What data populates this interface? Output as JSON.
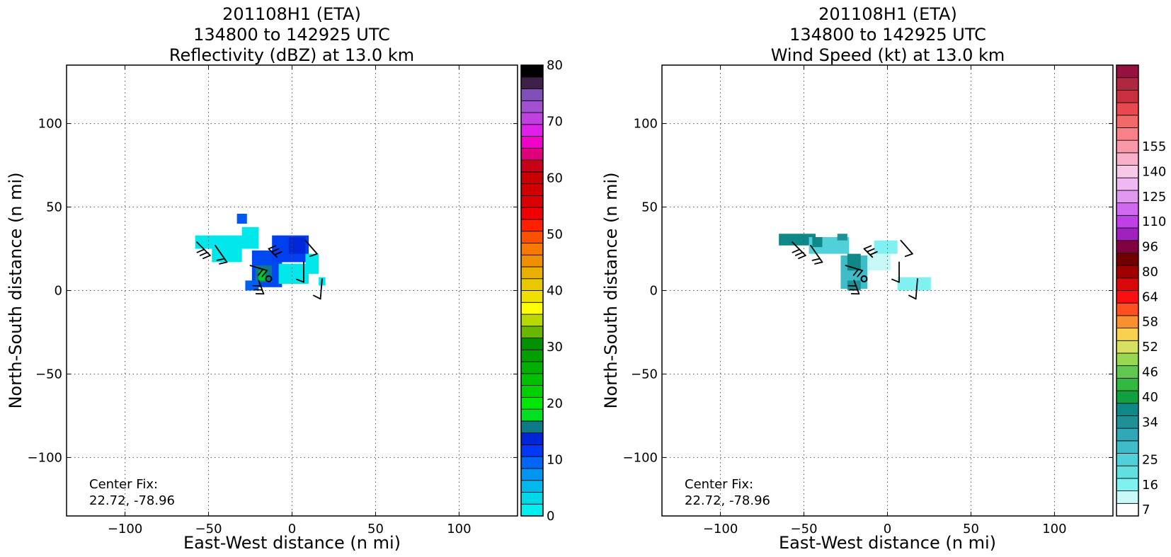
{
  "chart_data": [
    {
      "type": "heatmap",
      "title_lines": [
        "201108H1 (ETA)",
        "134800 to 142925 UTC",
        "Reflectivity (dBZ) at 13.0 km"
      ],
      "xlabel": "East-West distance (n mi)",
      "ylabel": "North-South distance (n mi)",
      "xlim": [
        -135,
        135
      ],
      "ylim": [
        -135,
        135
      ],
      "xticks": [
        -100,
        -50,
        0,
        50,
        100
      ],
      "yticks": [
        -100,
        -50,
        0,
        50,
        100
      ],
      "xtick_labels": [
        "−100",
        "−50",
        "0",
        "50",
        "100"
      ],
      "ytick_labels": [
        "−100",
        "−50",
        "0",
        "50",
        "100"
      ],
      "grid": true,
      "annotation_lines": [
        "Center Fix:",
        "22.72, -78.96"
      ],
      "center_marker": [
        -14,
        7
      ],
      "colorbar": {
        "min": 0,
        "max": 80,
        "tick_values": [
          0,
          10,
          20,
          30,
          40,
          50,
          60,
          70,
          80
        ],
        "tick_labels": [
          "0",
          "10",
          "20",
          "30",
          "40",
          "50",
          "60",
          "70",
          "80"
        ],
        "colors": [
          "#00f0f0",
          "#00d8e8",
          "#00b8ee",
          "#0095f0",
          "#0066f6",
          "#0038f6",
          "#0024d8",
          "#0d7a8a",
          "#00e020",
          "#00e600",
          "#00d000",
          "#00c000",
          "#00b000",
          "#00a000",
          "#009000",
          "#68b800",
          "#b8d800",
          "#ffff00",
          "#f0e000",
          "#e8c800",
          "#eab000",
          "#f09000",
          "#f87800",
          "#ff5000",
          "#ff2000",
          "#f00000",
          "#d80000",
          "#d00000",
          "#c80000",
          "#c80018",
          "#e0007a",
          "#f000c8",
          "#e020e8",
          "#c040e0",
          "#a050d0",
          "#8050b8",
          "#40204a",
          "#000000"
        ]
      },
      "radar_patches": [
        {
          "x": -58,
          "y": 25,
          "w": 38,
          "h": 8,
          "color": "#00e8ec"
        },
        {
          "x": -48,
          "y": 17,
          "w": 18,
          "h": 8,
          "color": "#00e8ec"
        },
        {
          "x": -33,
          "y": 40,
          "w": 6,
          "h": 6,
          "color": "#0058f0"
        },
        {
          "x": -30,
          "y": 30,
          "w": 10,
          "h": 8,
          "color": "#00e8ec"
        },
        {
          "x": -24,
          "y": 2,
          "w": 18,
          "h": 22,
          "color": "#0048f0"
        },
        {
          "x": -22,
          "y": 5,
          "w": 10,
          "h": 10,
          "color": "#0d7a8a"
        },
        {
          "x": -20,
          "y": 6,
          "w": 4,
          "h": 6,
          "color": "#00c828"
        },
        {
          "x": -12,
          "y": 17,
          "w": 22,
          "h": 16,
          "color": "#0040f0"
        },
        {
          "x": -8,
          "y": 4,
          "w": 18,
          "h": 12,
          "color": "#00e8ec"
        },
        {
          "x": 8,
          "y": 10,
          "w": 8,
          "h": 12,
          "color": "#00e8ec"
        },
        {
          "x": 16,
          "y": 3,
          "w": 4,
          "h": 5,
          "color": "#00e8ec"
        },
        {
          "x": -28,
          "y": 0,
          "w": 8,
          "h": 6,
          "color": "#0060f0"
        },
        {
          "x": -2,
          "y": 22,
          "w": 10,
          "h": 10,
          "color": "#0028d8"
        }
      ],
      "wind_barbs": [
        {
          "x": -57,
          "y": 29,
          "u": 8,
          "v": -8,
          "flags": 3
        },
        {
          "x": -46,
          "y": 27,
          "u": 7,
          "v": -10,
          "flags": 2
        },
        {
          "x": -25,
          "y": 15,
          "u": 10,
          "v": -3,
          "flags": 2
        },
        {
          "x": -20,
          "y": 6,
          "u": 3,
          "v": -8,
          "flags": 3
        },
        {
          "x": -9,
          "y": 20,
          "u": -5,
          "v": 5,
          "flags": 3
        },
        {
          "x": 7,
          "y": 17,
          "u": 0,
          "v": -12,
          "flags": 1
        },
        {
          "x": 8,
          "y": 30,
          "u": 7,
          "v": -8,
          "flags": 1
        },
        {
          "x": 18,
          "y": 7,
          "u": -1,
          "v": -12,
          "flags": 1
        }
      ]
    },
    {
      "type": "heatmap",
      "title_lines": [
        "201108H1 (ETA)",
        "134800 to 142925 UTC",
        "Wind Speed (kt) at 13.0 km"
      ],
      "xlabel": "East-West distance (n mi)",
      "ylabel": "North-South distance (n mi)",
      "xlim": [
        -135,
        135
      ],
      "ylim": [
        -135,
        135
      ],
      "xticks": [
        -100,
        -50,
        0,
        50,
        100
      ],
      "yticks": [
        -100,
        -50,
        0,
        50,
        100
      ],
      "xtick_labels": [
        "−100",
        "−50",
        "0",
        "50",
        "100"
      ],
      "ytick_labels": [
        "−100",
        "−50",
        "0",
        "50",
        "100"
      ],
      "grid": true,
      "annotation_lines": [
        "Center Fix:",
        "22.72, -78.96"
      ],
      "center_marker": [
        -14,
        7
      ],
      "colorbar": {
        "tick_values": [
          7,
          16,
          25,
          34,
          40,
          46,
          52,
          58,
          64,
          80,
          96,
          110,
          125,
          140,
          155
        ],
        "tick_labels": [
          "7",
          "16",
          "25",
          "34",
          "40",
          "46",
          "52",
          "58",
          "64",
          "80",
          "96",
          "110",
          "125",
          "140",
          "155"
        ],
        "tick_bin_index": [
          0,
          2,
          4,
          7,
          9,
          11,
          13,
          15,
          17,
          19,
          21,
          23,
          25,
          27,
          29
        ],
        "colors": [
          "#ffffff",
          "#c8f8f8",
          "#80f0f0",
          "#60e0e0",
          "#50d0d8",
          "#40bcc8",
          "#30a8b8",
          "#209098",
          "#108888",
          "#10a040",
          "#30b840",
          "#60c850",
          "#98d850",
          "#d8e060",
          "#f8d050",
          "#f89030",
          "#ff5020",
          "#f81010",
          "#d80808",
          "#a00000",
          "#700000",
          "#800040",
          "#a020c0",
          "#c040e8",
          "#d068f0",
          "#e098f0",
          "#f0b8f0",
          "#f8c8e8",
          "#f8b0c8",
          "#f898a8",
          "#f88088",
          "#f06868",
          "#e84850",
          "#c83040",
          "#b02840",
          "#981040"
        ]
      },
      "radar_patches": [
        {
          "x": -65,
          "y": 27,
          "w": 22,
          "h": 7,
          "color": "#108888"
        },
        {
          "x": -47,
          "y": 22,
          "w": 24,
          "h": 10,
          "color": "#50d0d8"
        },
        {
          "x": -45,
          "y": 26,
          "w": 6,
          "h": 6,
          "color": "#108888"
        },
        {
          "x": -30,
          "y": 30,
          "w": 6,
          "h": 4,
          "color": "#209098"
        },
        {
          "x": -28,
          "y": 1,
          "w": 16,
          "h": 20,
          "color": "#40bcc8"
        },
        {
          "x": -24,
          "y": 12,
          "w": 8,
          "h": 10,
          "color": "#108888"
        },
        {
          "x": -12,
          "y": 12,
          "w": 14,
          "h": 10,
          "color": "#c8f8f8"
        },
        {
          "x": -8,
          "y": 22,
          "w": 14,
          "h": 8,
          "color": "#80f0f0"
        },
        {
          "x": 6,
          "y": 0,
          "w": 20,
          "h": 8,
          "color": "#80f0f0"
        },
        {
          "x": -24,
          "y": 0,
          "w": 8,
          "h": 6,
          "color": "#209098"
        }
      ],
      "wind_barbs": [
        {
          "x": -57,
          "y": 29,
          "u": 8,
          "v": -8,
          "flags": 3
        },
        {
          "x": -46,
          "y": 27,
          "u": 7,
          "v": -10,
          "flags": 2
        },
        {
          "x": -25,
          "y": 15,
          "u": 10,
          "v": -3,
          "flags": 2
        },
        {
          "x": -20,
          "y": 6,
          "u": 3,
          "v": -8,
          "flags": 3
        },
        {
          "x": -9,
          "y": 20,
          "u": -5,
          "v": 5,
          "flags": 3
        },
        {
          "x": 7,
          "y": 17,
          "u": 0,
          "v": -12,
          "flags": 1
        },
        {
          "x": 8,
          "y": 30,
          "u": 7,
          "v": -8,
          "flags": 1
        },
        {
          "x": 18,
          "y": 7,
          "u": -1,
          "v": -12,
          "flags": 1
        }
      ]
    }
  ]
}
